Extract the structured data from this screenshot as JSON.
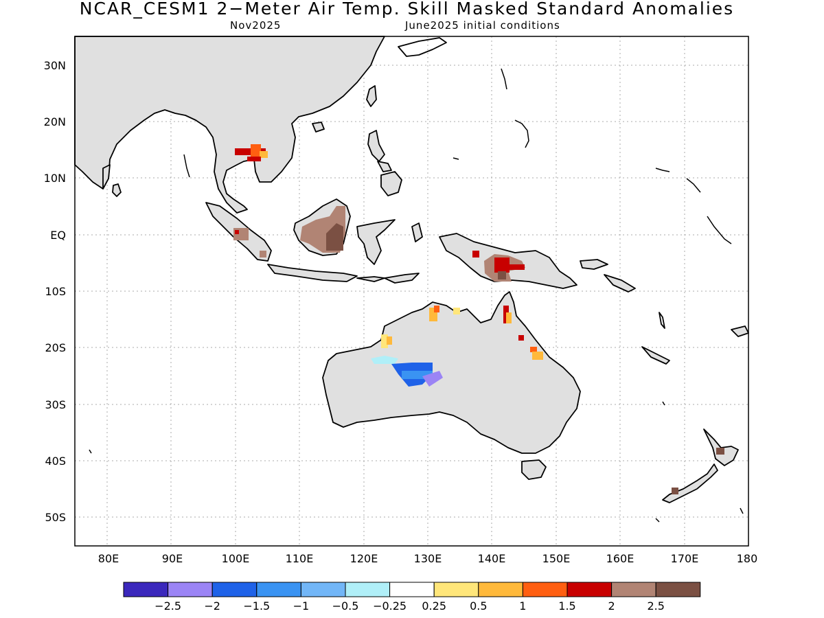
{
  "header": {
    "title": "NCAR_CESM1 2−Meter Air Temp. Skill Masked Standard Anomalies",
    "valid_month": "Nov2025",
    "init": "June2025 initial conditions"
  },
  "map": {
    "lon_range": [
      75,
      180
    ],
    "lat_range": [
      -55,
      35
    ],
    "lon_labels": [
      "80E",
      "90E",
      "100E",
      "110E",
      "120E",
      "130E",
      "140E",
      "150E",
      "160E",
      "170E",
      "180"
    ],
    "lat_labels": [
      "30N",
      "20N",
      "10N",
      "EQ",
      "10S",
      "20S",
      "30S",
      "40S",
      "50S"
    ],
    "land_color": "#e0e0e0",
    "grid": "dotted"
  },
  "anomalies": [
    {
      "region": "Thailand/Cambodia",
      "level": 1.5
    },
    {
      "region": "Sumatra",
      "level": 2.5
    },
    {
      "region": "Borneo",
      "level": 2.5
    },
    {
      "region": "New Guinea",
      "level": 2.0
    },
    {
      "region": "Northern Australia",
      "level": 0.5
    },
    {
      "region": "Cape York",
      "level": 1.0
    },
    {
      "region": "Queensland coast",
      "level": 1.0
    },
    {
      "region": "Central Australia",
      "level": -1.5
    },
    {
      "region": "New Zealand",
      "level": 2.5
    }
  ],
  "legend": {
    "colors": [
      "#3b28bc",
      "#9b84f5",
      "#1f62e8",
      "#3a93f2",
      "#72b6f7",
      "#b0eff8",
      "#ffffff",
      "#ffe67a",
      "#ffb93b",
      "#ff5f11",
      "#c80000",
      "#b18474",
      "#7b5043"
    ],
    "labels": [
      "−2.5",
      "−2",
      "−1.5",
      "−1",
      "−0.5",
      "−0.25",
      "0.25",
      "0.5",
      "1",
      "1.5",
      "2",
      "2.5"
    ]
  }
}
